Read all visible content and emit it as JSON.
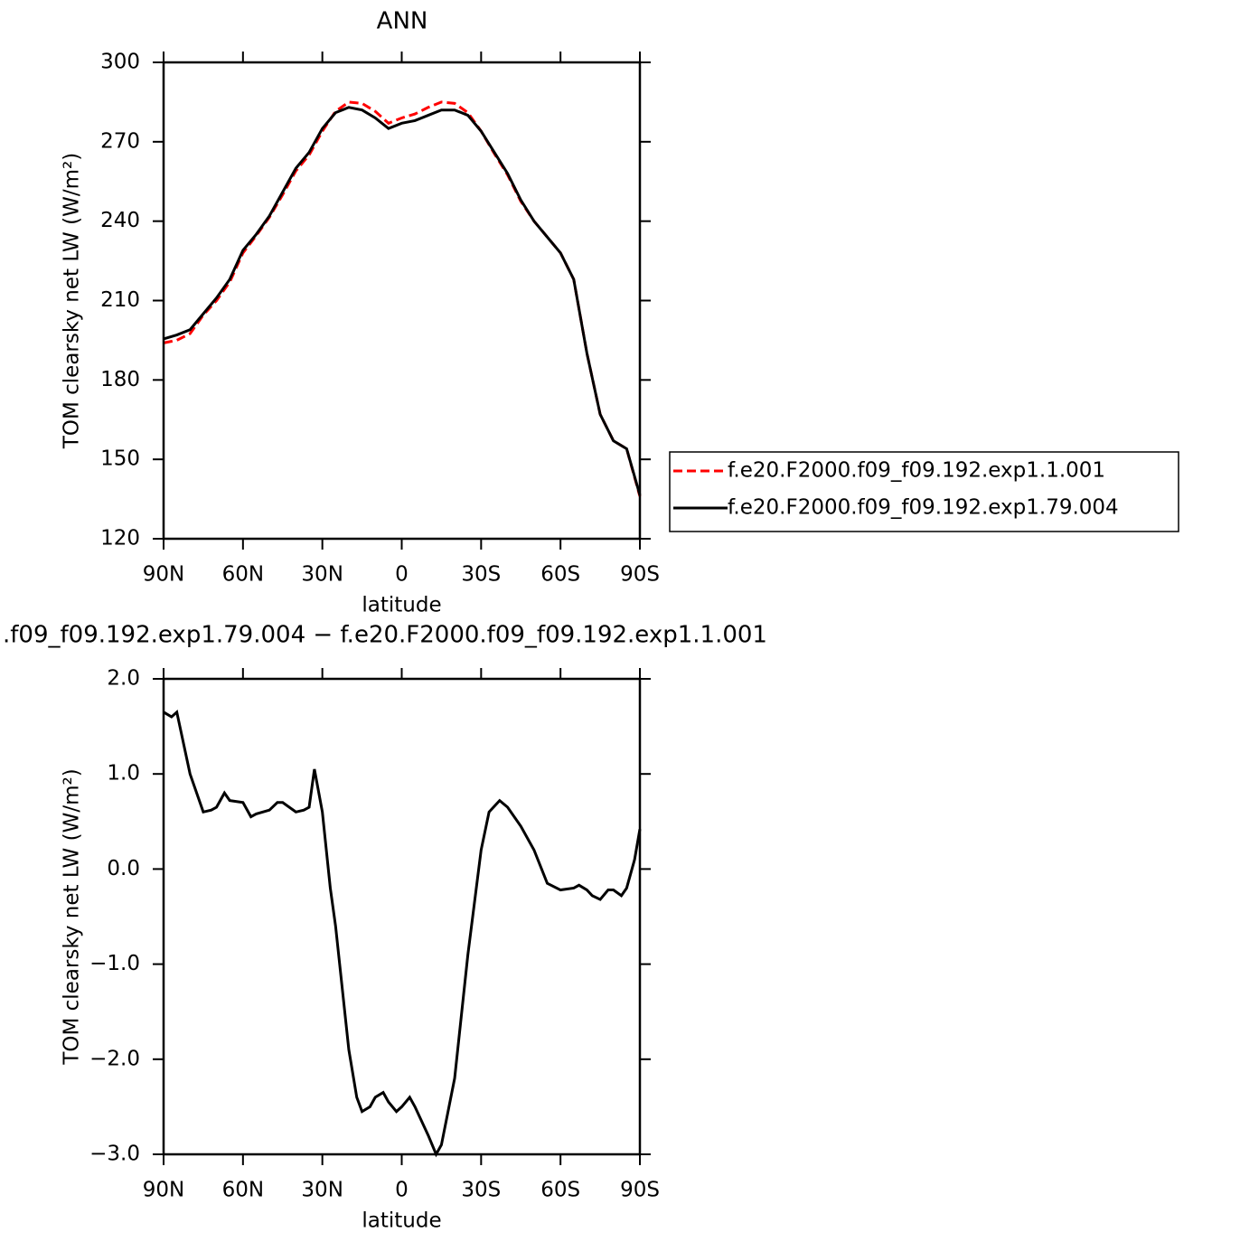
{
  "chart_data": [
    {
      "type": "line",
      "title": "ANN",
      "xlabel": "latitude",
      "ylabel": "TOM clearsky net LW (W/m²)",
      "x": [
        90,
        85,
        80,
        75,
        70,
        65,
        60,
        55,
        50,
        45,
        40,
        35,
        30,
        25,
        20,
        15,
        10,
        5,
        0,
        -5,
        -10,
        -15,
        -20,
        -25,
        -30,
        -35,
        -40,
        -45,
        -50,
        -55,
        -60,
        -65,
        -70,
        -75,
        -80,
        -85,
        -90
      ],
      "xlim": [
        90,
        -90
      ],
      "xticks": [
        {
          "value": 90,
          "label": "90N"
        },
        {
          "value": 60,
          "label": "60N"
        },
        {
          "value": 30,
          "label": "30N"
        },
        0,
        {
          "value": -30,
          "label": "30S"
        },
        {
          "value": -60,
          "label": "60S"
        },
        {
          "value": -90,
          "label": "90S"
        }
      ],
      "ylim": [
        120,
        300
      ],
      "yticks": [
        120,
        150,
        180,
        210,
        240,
        270,
        300
      ],
      "legend": "right",
      "series": [
        {
          "name": "f.e20.F2000.f09_f09.192.exp1.1.001",
          "color": "#ff0000",
          "dashed": true,
          "values": [
            194,
            195,
            197.5,
            204.5,
            210,
            217,
            228,
            234.5,
            241.5,
            250,
            259,
            265,
            274,
            281.5,
            285,
            284.5,
            281.5,
            277,
            279,
            280.5,
            283,
            285,
            284.5,
            281,
            274,
            265.5,
            257.5,
            247.5,
            240,
            234,
            228,
            218,
            190,
            167,
            157,
            154,
            136
          ]
        },
        {
          "name": "f.e20.F2000.f09_f09.192.exp1.79.004",
          "color": "#000000",
          "dashed": false,
          "values": [
            195.5,
            197,
            199,
            205,
            211,
            218,
            229,
            235,
            242,
            251,
            260,
            266,
            275,
            281,
            283,
            282,
            279,
            275,
            277,
            278,
            280,
            282,
            282,
            280,
            274,
            266,
            258,
            248,
            240,
            234,
            228,
            218,
            190,
            167,
            157,
            154,
            136.5
          ]
        }
      ]
    },
    {
      "type": "line",
      "title": ".f09_f09.192.exp1.79.004 − f.e20.F2000.f09_f09.192.exp1.1.001",
      "xlabel": "latitude",
      "ylabel": "TOM clearsky net LW (W/m²)",
      "x": [
        90,
        87,
        85,
        80,
        75,
        72,
        70,
        67,
        65,
        60,
        57,
        55,
        50,
        47,
        45,
        40,
        37,
        35,
        33,
        30,
        27,
        25,
        20,
        17,
        15,
        12,
        10,
        7,
        5,
        2,
        0,
        -3,
        -5,
        -10,
        -13,
        -15,
        -20,
        -25,
        -30,
        -33,
        -37,
        -40,
        -45,
        -50,
        -55,
        -60,
        -65,
        -67,
        -70,
        -72,
        -75,
        -78,
        -80,
        -83,
        -85,
        -88,
        -90
      ],
      "xlim": [
        90,
        -90
      ],
      "xticks": [
        {
          "value": 90,
          "label": "90N"
        },
        {
          "value": 60,
          "label": "60N"
        },
        {
          "value": 30,
          "label": "30N"
        },
        0,
        {
          "value": -30,
          "label": "30S"
        },
        {
          "value": -60,
          "label": "60S"
        },
        {
          "value": -90,
          "label": "90S"
        }
      ],
      "ylim": [
        -3,
        2
      ],
      "yticks": [
        {
          "value": -3,
          "label": "−3.0"
        },
        {
          "value": -2,
          "label": "−2.0"
        },
        {
          "value": -1,
          "label": "−1.0"
        },
        {
          "value": 0,
          "label": "0.0"
        },
        {
          "value": 1,
          "label": "1.0"
        },
        {
          "value": 2,
          "label": "2.0"
        }
      ],
      "series": [
        {
          "color": "#000000",
          "dashed": false,
          "values": [
            1.65,
            1.6,
            1.65,
            1.0,
            0.6,
            0.62,
            0.65,
            0.8,
            0.72,
            0.7,
            0.55,
            0.58,
            0.62,
            0.7,
            0.7,
            0.6,
            0.62,
            0.65,
            1.05,
            0.6,
            -0.2,
            -0.6,
            -1.9,
            -2.4,
            -2.55,
            -2.5,
            -2.4,
            -2.35,
            -2.45,
            -2.55,
            -2.5,
            -2.4,
            -2.5,
            -2.8,
            -3.0,
            -2.9,
            -2.2,
            -0.9,
            0.2,
            0.6,
            0.72,
            0.65,
            0.45,
            0.2,
            -0.15,
            -0.22,
            -0.2,
            -0.17,
            -0.22,
            -0.28,
            -0.32,
            -0.22,
            -0.22,
            -0.28,
            -0.2,
            0.1,
            0.42
          ]
        }
      ]
    }
  ]
}
